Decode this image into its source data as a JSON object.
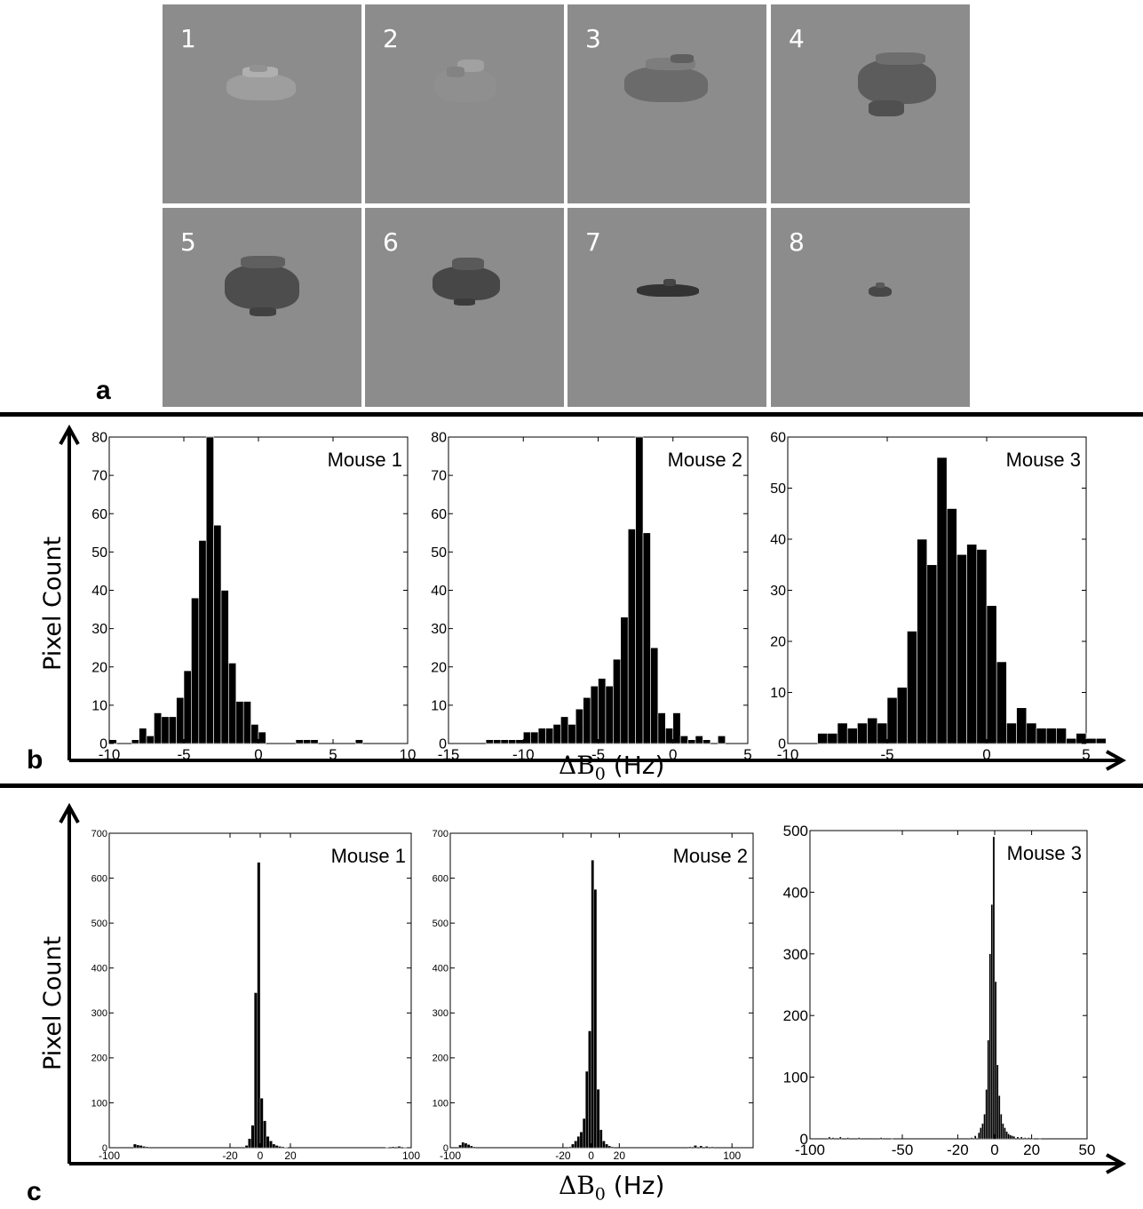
{
  "panels": {
    "a": {
      "label": "a",
      "tiles": [
        {
          "num": "1",
          "bright": 0.62
        },
        {
          "num": "2",
          "bright": 0.56
        },
        {
          "num": "3",
          "bright": 0.42
        },
        {
          "num": "4",
          "bright": 0.36
        },
        {
          "num": "5",
          "bright": 0.3
        },
        {
          "num": "6",
          "bright": 0.28
        },
        {
          "num": "7",
          "bright": 0.2
        },
        {
          "num": "8",
          "bright": 0.28
        }
      ]
    },
    "b": {
      "label": "b",
      "ylabel": "Pixel Count",
      "xlabel_symbol": "ΔB",
      "xlabel_sub": "0",
      "xlabel_unit": "(Hz)"
    },
    "c": {
      "label": "c",
      "ylabel": "Pixel Count",
      "xlabel_symbol": "ΔB",
      "xlabel_sub": "0",
      "xlabel_unit": "(Hz)"
    }
  },
  "colors": {
    "bars": "#000000",
    "tile_bg": "#8c8c8c",
    "tile_num": "#ffffff"
  },
  "chart_data": [
    {
      "type": "bar",
      "panel": "b",
      "title": "Mouse 1",
      "xlim": [
        -10,
        10
      ],
      "ylim": [
        0,
        80
      ],
      "xticks": [
        -10,
        -5,
        0,
        5,
        10
      ],
      "yticks": [
        0,
        10,
        20,
        30,
        40,
        50,
        60,
        70,
        80
      ],
      "binwidth": 0.5,
      "bins": [
        [
          -9.75,
          1
        ],
        [
          -8.25,
          1
        ],
        [
          -7.75,
          4
        ],
        [
          -7.25,
          2
        ],
        [
          -6.75,
          8
        ],
        [
          -6.25,
          7
        ],
        [
          -5.75,
          7
        ],
        [
          -5.25,
          12
        ],
        [
          -4.75,
          19
        ],
        [
          -4.25,
          38
        ],
        [
          -3.75,
          53
        ],
        [
          -3.25,
          80
        ],
        [
          -2.75,
          57
        ],
        [
          -2.25,
          40
        ],
        [
          -1.75,
          21
        ],
        [
          -1.25,
          11
        ],
        [
          -0.75,
          11
        ],
        [
          -0.25,
          5
        ],
        [
          0.25,
          3
        ],
        [
          0.75,
          0
        ],
        [
          2.75,
          1
        ],
        [
          3.25,
          1
        ],
        [
          3.75,
          1
        ],
        [
          6.75,
          1
        ]
      ]
    },
    {
      "type": "bar",
      "panel": "b",
      "title": "Mouse 2",
      "xlim": [
        -15,
        5
      ],
      "ylim": [
        0,
        80
      ],
      "xticks": [
        -15,
        -10,
        -5,
        0,
        5
      ],
      "yticks": [
        0,
        10,
        20,
        30,
        40,
        50,
        60,
        70,
        80
      ],
      "binwidth": 0.5,
      "bins": [
        [
          -12.25,
          1
        ],
        [
          -11.75,
          1
        ],
        [
          -11.25,
          1
        ],
        [
          -10.75,
          1
        ],
        [
          -10.25,
          1
        ],
        [
          -9.75,
          3
        ],
        [
          -9.25,
          3
        ],
        [
          -8.75,
          4
        ],
        [
          -8.25,
          4
        ],
        [
          -7.75,
          5
        ],
        [
          -7.25,
          7
        ],
        [
          -6.75,
          5
        ],
        [
          -6.25,
          9
        ],
        [
          -5.75,
          12
        ],
        [
          -5.25,
          15
        ],
        [
          -4.75,
          17
        ],
        [
          -4.25,
          15
        ],
        [
          -3.75,
          22
        ],
        [
          -3.25,
          33
        ],
        [
          -2.75,
          56
        ],
        [
          -2.25,
          80
        ],
        [
          -1.75,
          55
        ],
        [
          -1.25,
          25
        ],
        [
          -0.75,
          8
        ],
        [
          -0.25,
          4
        ],
        [
          0.25,
          8
        ],
        [
          0.75,
          2
        ],
        [
          1.25,
          1
        ],
        [
          1.75,
          2
        ],
        [
          2.25,
          1
        ],
        [
          3.25,
          2
        ]
      ]
    },
    {
      "type": "bar",
      "panel": "b",
      "title": "Mouse 3",
      "xlim": [
        -10,
        5
      ],
      "ylim": [
        0,
        60
      ],
      "xticks": [
        -10,
        -5,
        0,
        5
      ],
      "yticks": [
        0,
        10,
        20,
        30,
        40,
        50,
        60
      ],
      "binwidth": 0.5,
      "bins": [
        [
          -8.25,
          2
        ],
        [
          -7.75,
          2
        ],
        [
          -7.25,
          4
        ],
        [
          -6.75,
          3
        ],
        [
          -6.25,
          4
        ],
        [
          -5.75,
          5
        ],
        [
          -5.25,
          4
        ],
        [
          -4.75,
          9
        ],
        [
          -4.25,
          11
        ],
        [
          -3.75,
          22
        ],
        [
          -3.25,
          40
        ],
        [
          -2.75,
          35
        ],
        [
          -2.25,
          56
        ],
        [
          -1.75,
          46
        ],
        [
          -1.25,
          37
        ],
        [
          -0.75,
          39
        ],
        [
          -0.25,
          38
        ],
        [
          0.25,
          27
        ],
        [
          0.75,
          16
        ],
        [
          1.25,
          4
        ],
        [
          1.75,
          7
        ],
        [
          2.25,
          4
        ],
        [
          2.75,
          3
        ],
        [
          3.25,
          3
        ],
        [
          3.75,
          3
        ],
        [
          4.25,
          1
        ],
        [
          4.75,
          2
        ],
        [
          5.25,
          1
        ],
        [
          5.75,
          1
        ]
      ]
    },
    {
      "type": "bar",
      "panel": "c",
      "title": "Mouse 1",
      "xlim": [
        -100,
        100
      ],
      "ylim": [
        0,
        700
      ],
      "xticks": [
        -100,
        -20,
        0,
        20,
        100
      ],
      "yticks": [
        0,
        100,
        200,
        300,
        400,
        500,
        600,
        700
      ],
      "binwidth": 2,
      "bins": [
        [
          -83,
          8
        ],
        [
          -81,
          6
        ],
        [
          -79,
          5
        ],
        [
          -77,
          3
        ],
        [
          -75,
          2
        ],
        [
          -9,
          5
        ],
        [
          -7,
          20
        ],
        [
          -5,
          50
        ],
        [
          -3,
          345
        ],
        [
          -1,
          635
        ],
        [
          1,
          110
        ],
        [
          3,
          60
        ],
        [
          5,
          25
        ],
        [
          7,
          15
        ],
        [
          9,
          8
        ],
        [
          11,
          5
        ],
        [
          13,
          3
        ],
        [
          15,
          2
        ],
        [
          17,
          1
        ],
        [
          84,
          1
        ],
        [
          88,
          2
        ],
        [
          92,
          3
        ],
        [
          96,
          1
        ]
      ]
    },
    {
      "type": "bar",
      "panel": "c",
      "title": "Mouse 2",
      "xlim": [
        -100,
        115
      ],
      "ylim": [
        0,
        700
      ],
      "xticks": [
        -100,
        -20,
        0,
        20,
        100
      ],
      "yticks": [
        0,
        100,
        200,
        300,
        400,
        500,
        600,
        700
      ],
      "binwidth": 2,
      "bins": [
        [
          -93,
          6
        ],
        [
          -91,
          12
        ],
        [
          -89,
          10
        ],
        [
          -87,
          7
        ],
        [
          -85,
          4
        ],
        [
          -83,
          2
        ],
        [
          -15,
          2
        ],
        [
          -13,
          8
        ],
        [
          -11,
          15
        ],
        [
          -9,
          25
        ],
        [
          -7,
          35
        ],
        [
          -5,
          65
        ],
        [
          -3,
          170
        ],
        [
          -1,
          260
        ],
        [
          1,
          640
        ],
        [
          3,
          575
        ],
        [
          5,
          130
        ],
        [
          7,
          40
        ],
        [
          9,
          15
        ],
        [
          11,
          8
        ],
        [
          13,
          4
        ],
        [
          15,
          2
        ],
        [
          70,
          2
        ],
        [
          74,
          5
        ],
        [
          78,
          4
        ],
        [
          82,
          3
        ],
        [
          86,
          2
        ]
      ]
    },
    {
      "type": "bar",
      "panel": "c",
      "title": "Mouse 3",
      "xlim": [
        -100,
        50
      ],
      "ylim": [
        0,
        500
      ],
      "xticks": [
        -100,
        -50,
        -20,
        0,
        20,
        50
      ],
      "yticks": [
        0,
        100,
        200,
        300,
        400,
        500
      ],
      "binwidth": 1,
      "bins": [
        [
          -89.5,
          3
        ],
        [
          -87.5,
          2
        ],
        [
          -83.5,
          3
        ],
        [
          -79.5,
          2
        ],
        [
          -73.5,
          2
        ],
        [
          -61.5,
          2
        ],
        [
          -55.5,
          1
        ],
        [
          -12.5,
          2
        ],
        [
          -10.5,
          5
        ],
        [
          -8.5,
          10
        ],
        [
          -7.5,
          18
        ],
        [
          -6.5,
          25
        ],
        [
          -5.5,
          40
        ],
        [
          -4.5,
          80
        ],
        [
          -3.5,
          160
        ],
        [
          -2.5,
          300
        ],
        [
          -1.5,
          380
        ],
        [
          -0.5,
          490
        ],
        [
          0.5,
          255
        ],
        [
          1.5,
          120
        ],
        [
          2.5,
          70
        ],
        [
          3.5,
          40
        ],
        [
          4.5,
          25
        ],
        [
          5.5,
          18
        ],
        [
          6.5,
          12
        ],
        [
          7.5,
          8
        ],
        [
          8.5,
          6
        ],
        [
          9.5,
          5
        ],
        [
          10.5,
          4
        ],
        [
          12.5,
          3
        ],
        [
          14.5,
          3
        ],
        [
          16.5,
          2
        ],
        [
          18.5,
          2
        ],
        [
          20.5,
          1
        ],
        [
          24.5,
          1
        ]
      ]
    }
  ]
}
